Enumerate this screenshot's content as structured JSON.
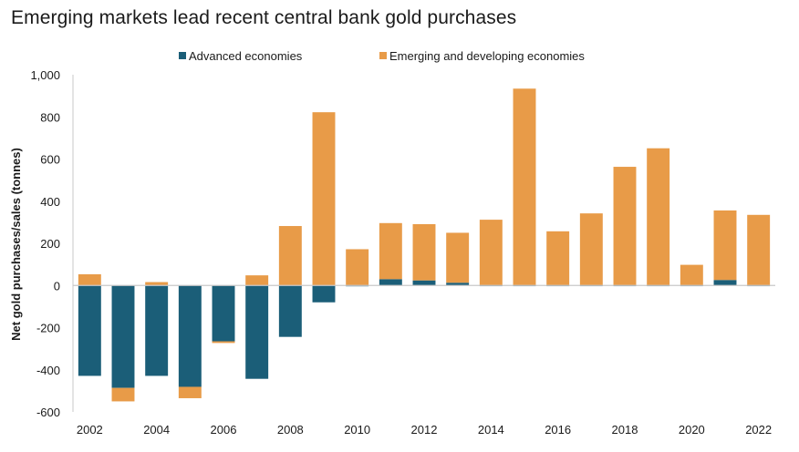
{
  "chart_data": {
    "type": "bar",
    "stacked": true,
    "title": "Emerging markets lead recent central bank gold purchases",
    "xlabel": "",
    "ylabel": "Net gold purchases/sales (tonnes)",
    "ylim": [
      -600,
      1000
    ],
    "yticks": [
      1000,
      800,
      600,
      400,
      200,
      0,
      -200,
      -400,
      -600
    ],
    "ytick_labels": [
      "1,000",
      "800",
      "600",
      "400",
      "200",
      "0",
      "-200",
      "-400",
      "-600"
    ],
    "categories": [
      "2002",
      "2003",
      "2004",
      "2005",
      "2006",
      "2007",
      "2008",
      "2009",
      "2010",
      "2011",
      "2012",
      "2013",
      "2014",
      "2015",
      "2016",
      "2017",
      "2018",
      "2019",
      "2020",
      "2021",
      "2022"
    ],
    "xtick_labels": [
      "2002",
      "2004",
      "2006",
      "2008",
      "2010",
      "2012",
      "2014",
      "2016",
      "2018",
      "2020",
      "2022"
    ],
    "grid": false,
    "legend_position": "top-center",
    "series": [
      {
        "name": "Advanced economies",
        "color": "#1b5e78",
        "values": [
          -429,
          -486,
          -429,
          -481,
          -265,
          -443,
          -244,
          -80,
          -4,
          30,
          24,
          13,
          -3,
          -3,
          -3,
          -2,
          -2,
          -2,
          -2,
          26,
          -2
        ]
      },
      {
        "name": "Emerging and developing economies",
        "color": "#e89b48",
        "values": [
          53,
          -64,
          16,
          -54,
          -8,
          48,
          282,
          822,
          172,
          266,
          267,
          237,
          312,
          934,
          257,
          342,
          563,
          651,
          98,
          330,
          335
        ]
      }
    ]
  }
}
